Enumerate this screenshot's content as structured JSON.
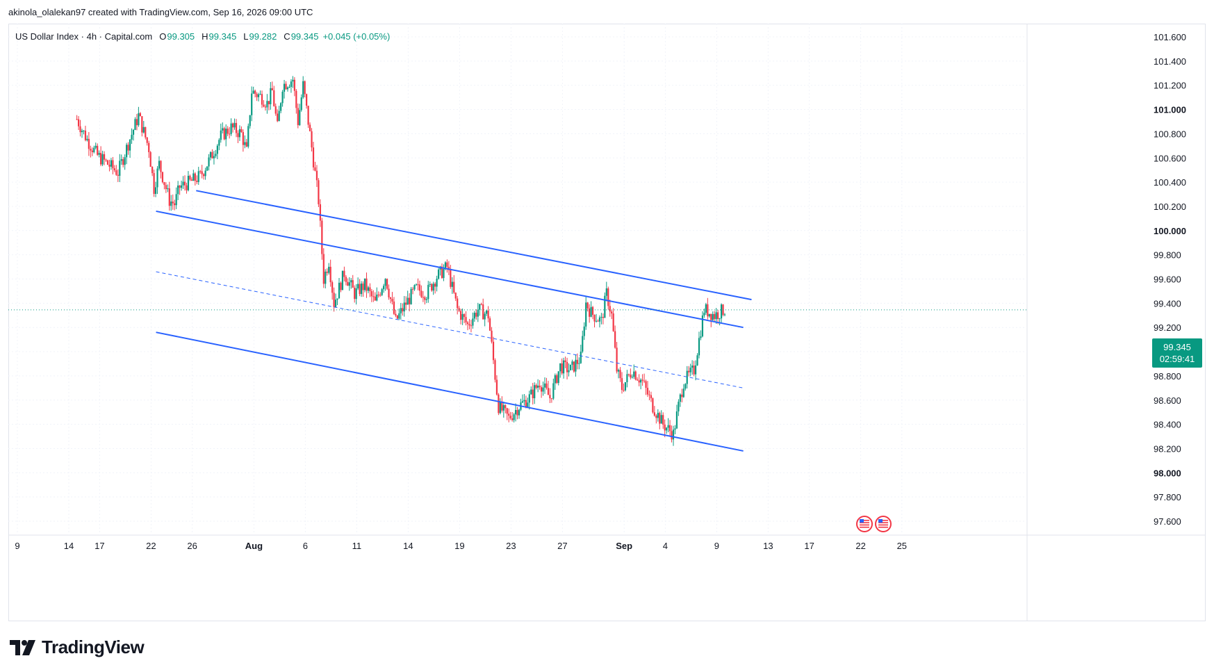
{
  "header": {
    "caption": "akinola_olalekan97 created with TradingView.com, Sep 16, 2026 09:00 UTC"
  },
  "legend": {
    "symbol": "US Dollar Index · 4h · Capital.com",
    "o_label": "O",
    "o_value": "99.305",
    "h_label": "H",
    "h_value": "99.345",
    "l_label": "L",
    "l_value": "99.282",
    "c_label": "C",
    "c_value": "99.345",
    "change": "+0.045 (+0.05%)"
  },
  "price_tag": {
    "price": "99.345",
    "countdown": "02:59:41"
  },
  "brand": {
    "name": "TradingView"
  },
  "colors": {
    "up": "#089981",
    "down": "#f23645",
    "channel": "#2962ff",
    "tag": "#089981"
  },
  "chart_data": {
    "type": "candlestick",
    "title": "US Dollar Index · 4h · Capital.com",
    "ylim": [
      97.5,
      101.75
    ],
    "y_ticks": [
      "101.600",
      "101.400",
      "101.200",
      "101.000",
      "100.800",
      "100.600",
      "100.400",
      "100.200",
      "100.000",
      "99.800",
      "99.600",
      "99.400",
      "99.200",
      "99.000",
      "98.800",
      "98.600",
      "98.400",
      "98.200",
      "98.000",
      "97.800",
      "97.600"
    ],
    "y_bold_ticks": [
      "101.000",
      "100.000",
      "99.000",
      "98.000"
    ],
    "x_ticks": [
      "9",
      "14",
      "17",
      "22",
      "26",
      "Aug",
      "6",
      "11",
      "14",
      "19",
      "23",
      "27",
      "Sep",
      "4",
      "9",
      "13",
      "17",
      "22",
      "25"
    ],
    "x_bold_ticks": [
      "Aug",
      "Sep"
    ],
    "last_price": 99.345,
    "grid": true,
    "price_path": [
      [
        7,
        100.92
      ],
      [
        8,
        100.75
      ],
      [
        9,
        100.62
      ],
      [
        10,
        100.55
      ],
      [
        11,
        100.48
      ],
      [
        12,
        100.72
      ],
      [
        13,
        100.95
      ],
      [
        14,
        100.68
      ],
      [
        14.5,
        100.35
      ],
      [
        15,
        100.55
      ],
      [
        16,
        100.25
      ],
      [
        16.5,
        100.22
      ],
      [
        17,
        100.36
      ],
      [
        18,
        100.4
      ],
      [
        19,
        100.45
      ],
      [
        20,
        100.6
      ],
      [
        21,
        100.78
      ],
      [
        22,
        100.85
      ],
      [
        23,
        100.8
      ],
      [
        23.5,
        100.65
      ],
      [
        24,
        101.15
      ],
      [
        25,
        101.1
      ],
      [
        25.5,
        101.05
      ],
      [
        26,
        101.15
      ],
      [
        26.5,
        100.85
      ],
      [
        27,
        101.2
      ],
      [
        28,
        101.25
      ],
      [
        28.5,
        100.9
      ],
      [
        29,
        101.2
      ],
      [
        29.5,
        100.9
      ],
      [
        30,
        100.58
      ],
      [
        30.5,
        100.25
      ],
      [
        31,
        99.6
      ],
      [
        31.5,
        99.75
      ],
      [
        32,
        99.4
      ],
      [
        33,
        99.65
      ],
      [
        34,
        99.48
      ],
      [
        35,
        99.55
      ],
      [
        36,
        99.4
      ],
      [
        37,
        99.62
      ],
      [
        38,
        99.25
      ],
      [
        39,
        99.4
      ],
      [
        40,
        99.52
      ],
      [
        41,
        99.48
      ],
      [
        42,
        99.62
      ],
      [
        43,
        99.7
      ],
      [
        44,
        99.35
      ],
      [
        45,
        99.22
      ],
      [
        46,
        99.35
      ],
      [
        47,
        99.3
      ],
      [
        48,
        98.55
      ],
      [
        49,
        98.45
      ],
      [
        50,
        98.55
      ],
      [
        51,
        98.62
      ],
      [
        52,
        98.75
      ],
      [
        53,
        98.62
      ],
      [
        54,
        98.88
      ],
      [
        55,
        98.85
      ],
      [
        56,
        98.95
      ],
      [
        56.5,
        99.4
      ],
      [
        57,
        99.32
      ],
      [
        58,
        99.25
      ],
      [
        58.5,
        99.48
      ],
      [
        59,
        99.3
      ],
      [
        59.5,
        98.85
      ],
      [
        60,
        98.7
      ],
      [
        61,
        98.85
      ],
      [
        62,
        98.75
      ],
      [
        63,
        98.55
      ],
      [
        64,
        98.4
      ],
      [
        65,
        98.32
      ],
      [
        65.5,
        98.55
      ],
      [
        66,
        98.75
      ],
      [
        67,
        98.85
      ],
      [
        67.5,
        99.1
      ],
      [
        68,
        99.35
      ],
      [
        69,
        99.3
      ],
      [
        70,
        99.35
      ]
    ],
    "channel_lines": [
      {
        "name": "",
        "style": "solid",
        "from": [
          18.6,
          100.33
        ],
        "to": [
          72.6,
          99.43
        ]
      },
      {
        "name": "",
        "style": "solid",
        "from": [
          14.7,
          100.16
        ],
        "to": [
          71.8,
          99.2
        ]
      },
      {
        "name": "",
        "style": "dashed",
        "from": [
          14.7,
          99.66
        ],
        "to": [
          71.8,
          98.7
        ]
      },
      {
        "name": "",
        "style": "solid",
        "from": [
          14.7,
          99.16
        ],
        "to": [
          71.8,
          98.18
        ]
      }
    ]
  }
}
